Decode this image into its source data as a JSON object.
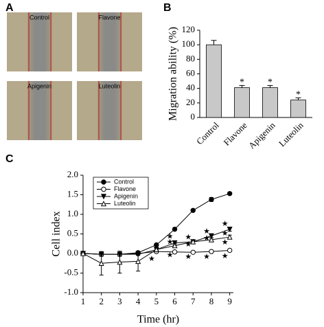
{
  "panel_a": {
    "label": "A",
    "images": [
      "Control",
      "Flavone",
      "Apigenin",
      "Luteolin"
    ]
  },
  "chart_data": [
    {
      "type": "bar",
      "panel_label": "B",
      "ylabel": "Migration ability (%)",
      "categories": [
        "Control",
        "Flavone",
        "Apigenin",
        "Luteolin"
      ],
      "values": [
        100,
        41,
        41,
        24
      ],
      "errors": [
        6,
        3,
        3,
        3
      ],
      "significance": [
        null,
        "*",
        "*",
        "*"
      ],
      "color": "#c8c8c8",
      "ylim": [
        0,
        120
      ],
      "yticks": [
        0,
        20,
        40,
        60,
        80,
        100,
        120
      ]
    },
    {
      "type": "line",
      "panel_label": "C",
      "xlabel": "Time (hr)",
      "ylabel": "Cell index",
      "x": [
        1,
        2,
        3,
        4,
        5,
        6,
        7,
        8,
        9
      ],
      "series": [
        {
          "name": "Control",
          "color": "#000000",
          "marker": "circle",
          "values": [
            0,
            -0.02,
            -0.02,
            0.02,
            0.22,
            0.62,
            1.1,
            1.38,
            1.53
          ],
          "errors": [
            0,
            0.05,
            0.05,
            0.03,
            0.03,
            0.03,
            0.03,
            0.05,
            0.03
          ]
        },
        {
          "name": "Flavone",
          "color": "#000000",
          "marker": "circle-open",
          "values": [
            0,
            -0.02,
            -0.02,
            0,
            0.05,
            0.04,
            0.03,
            0.05,
            0.08
          ],
          "errors": [
            0,
            0.05,
            0.05,
            0.03,
            0.03,
            0.03,
            0.03,
            0.03,
            0.03
          ]
        },
        {
          "name": "Apigenin",
          "color": "#000000",
          "marker": "triangle-down",
          "values": [
            0,
            -0.02,
            -0.02,
            -0.02,
            0.1,
            0.27,
            0.3,
            0.45,
            0.62
          ],
          "errors": [
            0,
            0.05,
            0.05,
            0.03,
            0.05,
            0.05,
            0.05,
            0.05,
            0.05
          ]
        },
        {
          "name": "Luteolin",
          "color": "#000000",
          "marker": "triangle-open",
          "values": [
            0,
            -0.25,
            -0.22,
            -0.2,
            0.1,
            0.2,
            0.3,
            0.35,
            0.42
          ],
          "errors": [
            0,
            0.3,
            0.28,
            0.25,
            0.05,
            0.05,
            0.05,
            0.05,
            0.05
          ]
        }
      ],
      "annotations": [
        {
          "text": "★",
          "x": 5,
          "y": -0.15
        },
        {
          "text": "★",
          "x": 6,
          "y": 0.42
        },
        {
          "text": "★",
          "x": 6,
          "y": 0.28
        },
        {
          "text": "★",
          "x": 6,
          "y": -0.05
        },
        {
          "text": "★",
          "x": 7,
          "y": 0.4
        },
        {
          "text": "★",
          "x": 7,
          "y": 0.22
        },
        {
          "text": "★",
          "x": 7,
          "y": -0.1
        },
        {
          "text": "★",
          "x": 8,
          "y": 0.55
        },
        {
          "text": "★",
          "x": 8,
          "y": 0.38
        },
        {
          "text": "★",
          "x": 8,
          "y": -0.1
        },
        {
          "text": "★",
          "x": 9,
          "y": 0.75
        },
        {
          "text": "★",
          "x": 9,
          "y": 0.5
        },
        {
          "text": "★",
          "x": 9,
          "y": 0.27
        },
        {
          "text": "★",
          "x": 9,
          "y": -0.08
        }
      ],
      "legend": "upper left",
      "xlim": [
        1,
        9.2
      ],
      "xticks": [
        1,
        2,
        3,
        4,
        5,
        6,
        7,
        8,
        9
      ],
      "ylim": [
        -1,
        2
      ],
      "yticks": [
        {
          "value": -1,
          "label": "-1.0"
        },
        {
          "value": -0.5,
          "label": "-0.5"
        },
        {
          "value": 0,
          "label": "0.0"
        },
        {
          "value": 0.5,
          "label": "0.5"
        },
        {
          "value": 1,
          "label": "1.0"
        },
        {
          "value": 1.5,
          "label": "1.5"
        },
        {
          "value": 2,
          "label": "2.0"
        }
      ]
    }
  ]
}
